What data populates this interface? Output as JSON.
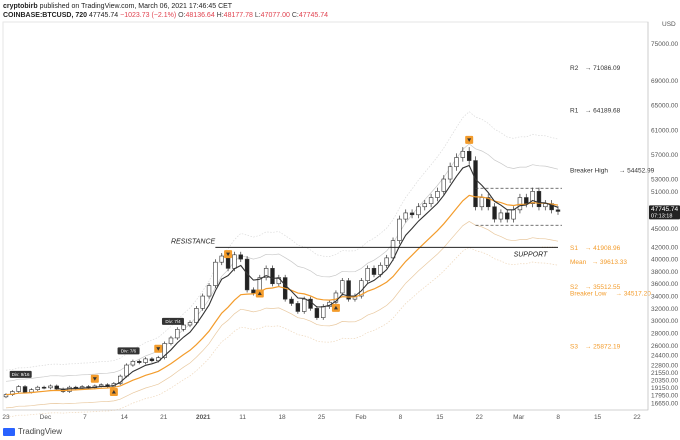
{
  "header": {
    "publisher": "cryptobirb",
    "published_text": "published on TradingView.com, March 06, 2021 17:46:45 CET",
    "symbol": "COINBASE:BTCUSD, 720",
    "last": "47745.74",
    "change": "−1023.73 (−2.1%)",
    "o_label": "O:",
    "o_value": "48136.64",
    "h_label": "H:",
    "h_value": "48177.78",
    "l_label": "L:",
    "l_value": "47077.00",
    "c_label": "C:",
    "c_value": "47745.74"
  },
  "footer": {
    "brand": "TradingView"
  },
  "colors": {
    "up": "#26a69a",
    "down": "#222222",
    "candle_up_fill": "#ffffff",
    "orange": "#f39c2c",
    "black_line": "#333333",
    "band": "#cfcfcf"
  },
  "chart_data": {
    "type": "candlestick",
    "currency": "USD",
    "ylim": [
      15500,
      78500
    ],
    "y_ticks": [
      16650,
      17950,
      19150,
      20350,
      21550,
      22800,
      24400,
      26000,
      28000,
      30000,
      32000,
      34000,
      36000,
      38000,
      40000,
      42000,
      45000,
      48000,
      51000,
      53000,
      57000,
      61000,
      65000,
      69000,
      75000
    ],
    "y_tick_labels": [
      "16650.00",
      "17950.00",
      "19150.00",
      "20350.00",
      "21550.00",
      "22800.00",
      "24400.00",
      "26000.00",
      "28000.00",
      "30000.00",
      "32000.00",
      "34000.00",
      "36000.00",
      "38000.00",
      "40000.00",
      "42000.00",
      "45000.00",
      "48000.00",
      "51000.00",
      "53000.00",
      "57000.00",
      "61000.00",
      "65000.00",
      "69000.00",
      "75000.00"
    ],
    "x_labels": [
      "23",
      "Dec",
      "7",
      "14",
      "21",
      "2021",
      "11",
      "18",
      "25",
      "Feb",
      "8",
      "15",
      "22",
      "Mar",
      "8",
      "15",
      "22"
    ],
    "current_price": 47745.74,
    "current_price_label": "47745.74",
    "countdown_label": "07:13:18",
    "close_series": [
      18000,
      18500,
      19300,
      18400,
      18800,
      19200,
      19100,
      19400,
      18900,
      18500,
      19200,
      19000,
      19300,
      19100,
      19400,
      19600,
      19300,
      19800,
      21000,
      22800,
      23400,
      23200,
      23800,
      23500,
      24000,
      26300,
      27200,
      28600,
      29300,
      29700,
      32000,
      34000,
      35700,
      39500,
      40500,
      38500,
      40700,
      40000,
      35000,
      34500,
      37000,
      38500,
      36000,
      37000,
      33500,
      32800,
      31500,
      33500,
      32000,
      30500,
      32300,
      33000,
      34500,
      36500,
      33500,
      34000,
      36500,
      38500,
      37500,
      39000,
      40200,
      43000,
      46500,
      47500,
      47200,
      48500,
      49000,
      50000,
      51000,
      53000,
      55000,
      56500,
      57500,
      56000,
      48500,
      50000,
      48500,
      46500,
      47500,
      46500,
      48000,
      50000,
      49000,
      51000,
      48500,
      49000,
      48000,
      47745.74
    ],
    "levels": [
      {
        "name": "R2",
        "label": "R2",
        "text": "→ 71086.09",
        "value": 71086.09,
        "color": "#333333"
      },
      {
        "name": "R1",
        "label": "R1",
        "text": "→ 64189.68",
        "value": 64189.68,
        "color": "#333333"
      },
      {
        "name": "Breaker High",
        "label": "Breaker High",
        "text": "→ 54452.99",
        "value": 54452.99,
        "color": "#333333"
      },
      {
        "name": "S1",
        "label": "S1",
        "text": "→ 41908.96",
        "value": 41908.96,
        "color": "#f39c2c"
      },
      {
        "name": "Mean",
        "label": "Mean",
        "text": "→ 39613.33",
        "value": 39613.33,
        "color": "#f39c2c"
      },
      {
        "name": "S2",
        "label": "S2",
        "text": "→ 35512.55",
        "value": 35512.55,
        "color": "#f39c2c"
      },
      {
        "name": "Breaker Low",
        "label": "Breaker Low",
        "text": "→ 34517.20",
        "value": 34517.2,
        "color": "#f39c2c"
      },
      {
        "name": "S3",
        "label": "S3",
        "text": "→ 25872.19",
        "value": 25872.19,
        "color": "#f39c2c"
      }
    ],
    "annotations": [
      {
        "text": "RESISTANCE",
        "type": "label"
      },
      {
        "text": "SUPPORT",
        "type": "label"
      },
      {
        "text": "Div: 9/16",
        "type": "tag"
      },
      {
        "text": "Div: 7/4",
        "type": "tag"
      },
      {
        "text": "Div: 7/6",
        "type": "tag"
      }
    ],
    "support_resistance_price": 41900,
    "range_box": {
      "top": 51500,
      "bottom": 45500
    }
  }
}
